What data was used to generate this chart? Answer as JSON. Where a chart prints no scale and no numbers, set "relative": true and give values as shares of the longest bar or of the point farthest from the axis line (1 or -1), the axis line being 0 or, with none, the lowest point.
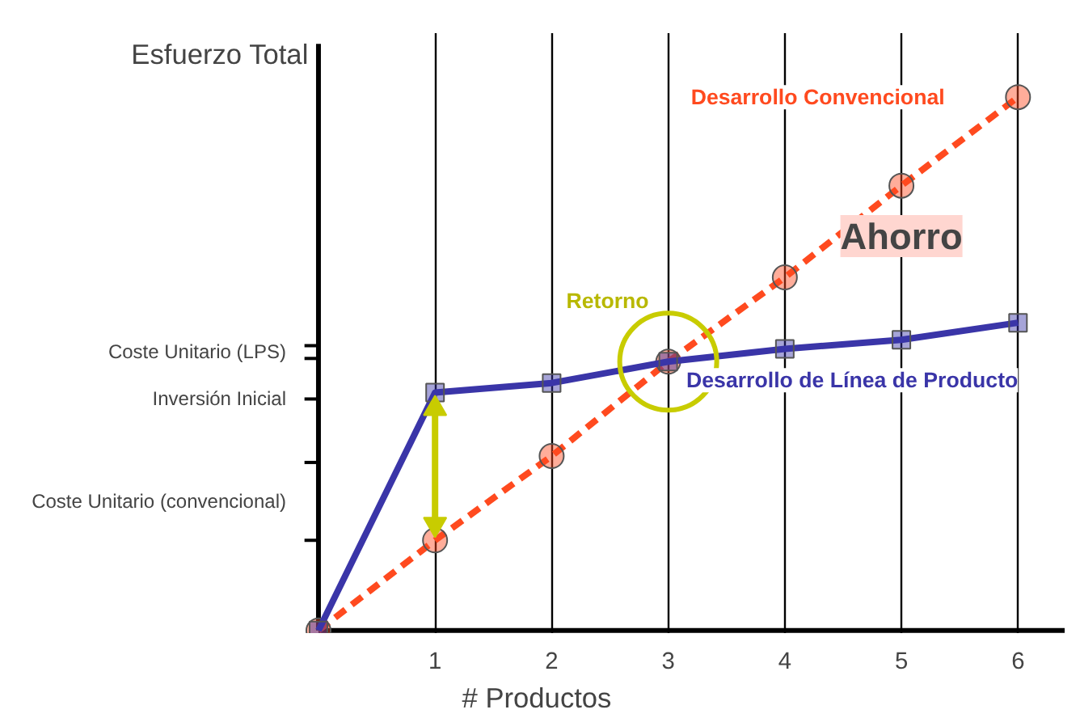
{
  "chart_data": {
    "type": "line",
    "relative": true,
    "xlabel": "# Productos",
    "ylabel": "Esfuerzo Total",
    "x": [
      0,
      1,
      2,
      3,
      4,
      5,
      6
    ],
    "xlim": [
      0,
      6.4
    ],
    "xticks": [
      1,
      2,
      3,
      4,
      5,
      6
    ],
    "grid": "x",
    "tick_labels": "x",
    "legend": false,
    "series": [
      {
        "name": "Desarrollo Convencional",
        "color": "#ff4a1f",
        "marker": "circle",
        "line_style": "dashed",
        "values": [
          0,
          0.169,
          0.327,
          0.504,
          0.662,
          0.834,
          1.0
        ]
      },
      {
        "name": "Desarrollo de Línea de Producto",
        "color": "#3a35a8",
        "marker": "square",
        "line_style": "solid",
        "values": [
          0,
          0.446,
          0.464,
          0.504,
          0.528,
          0.545,
          0.577
        ]
      }
    ],
    "annotations": [
      {
        "text": "Retorno",
        "x": 3,
        "y": 0.504
      },
      "Ahorro",
      "Coste Unitario (LPS)",
      "Inversión Inicial",
      "Coste Unitario (convencional)"
    ]
  }
}
